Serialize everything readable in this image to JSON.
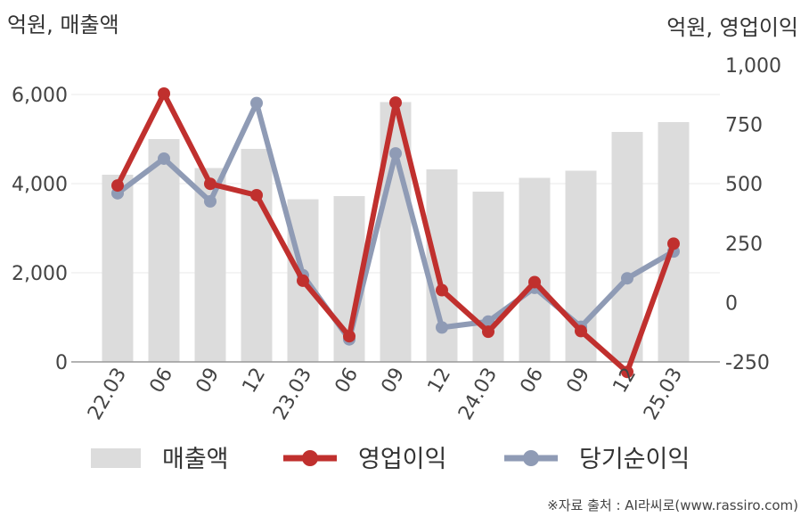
{
  "chart_data": {
    "type": "bar",
    "categories": [
      "22.03",
      "06",
      "09",
      "12",
      "23.03",
      "06",
      "09",
      "12",
      "24.03",
      "06",
      "09",
      "12",
      "25.03"
    ],
    "left_axis": {
      "label": "억원, 매출액",
      "ylim": [
        0,
        6000
      ],
      "ticks": [
        "0",
        "2,000",
        "4,000",
        "6,000"
      ],
      "tick_values": [
        0,
        2000,
        4000,
        6000
      ]
    },
    "right_axis": {
      "label": "억원, 영업이익",
      "ylim": [
        -250,
        1000
      ],
      "ticks": [
        "-250",
        "0",
        "250",
        "500",
        "750",
        "1,000"
      ],
      "tick_values": [
        -250,
        0,
        250,
        500,
        750,
        1000
      ]
    },
    "series": [
      {
        "name": "매출액",
        "kind": "bar",
        "axis": "left",
        "color": "#dcdcdc",
        "values": [
          4200,
          5000,
          4350,
          4780,
          3650,
          3720,
          5830,
          4320,
          3820,
          4130,
          4290,
          5160,
          5380
        ]
      },
      {
        "name": "영업이익",
        "kind": "line",
        "axis": "right",
        "color": "#c0302e",
        "values": [
          493,
          880,
          500,
          452,
          92,
          -142,
          842,
          52,
          -123,
          86,
          -120,
          -292,
          248
        ]
      },
      {
        "name": "당기순이익",
        "kind": "line",
        "axis": "right",
        "color": "#8f9bb5",
        "values": [
          460,
          606,
          426,
          840,
          115,
          -155,
          628,
          -105,
          -80,
          62,
          -102,
          102,
          215
        ]
      }
    ],
    "grid": true,
    "legend": "bottom"
  },
  "source": "※자료 출처 : AI라씨로(www.rassiro.com)"
}
